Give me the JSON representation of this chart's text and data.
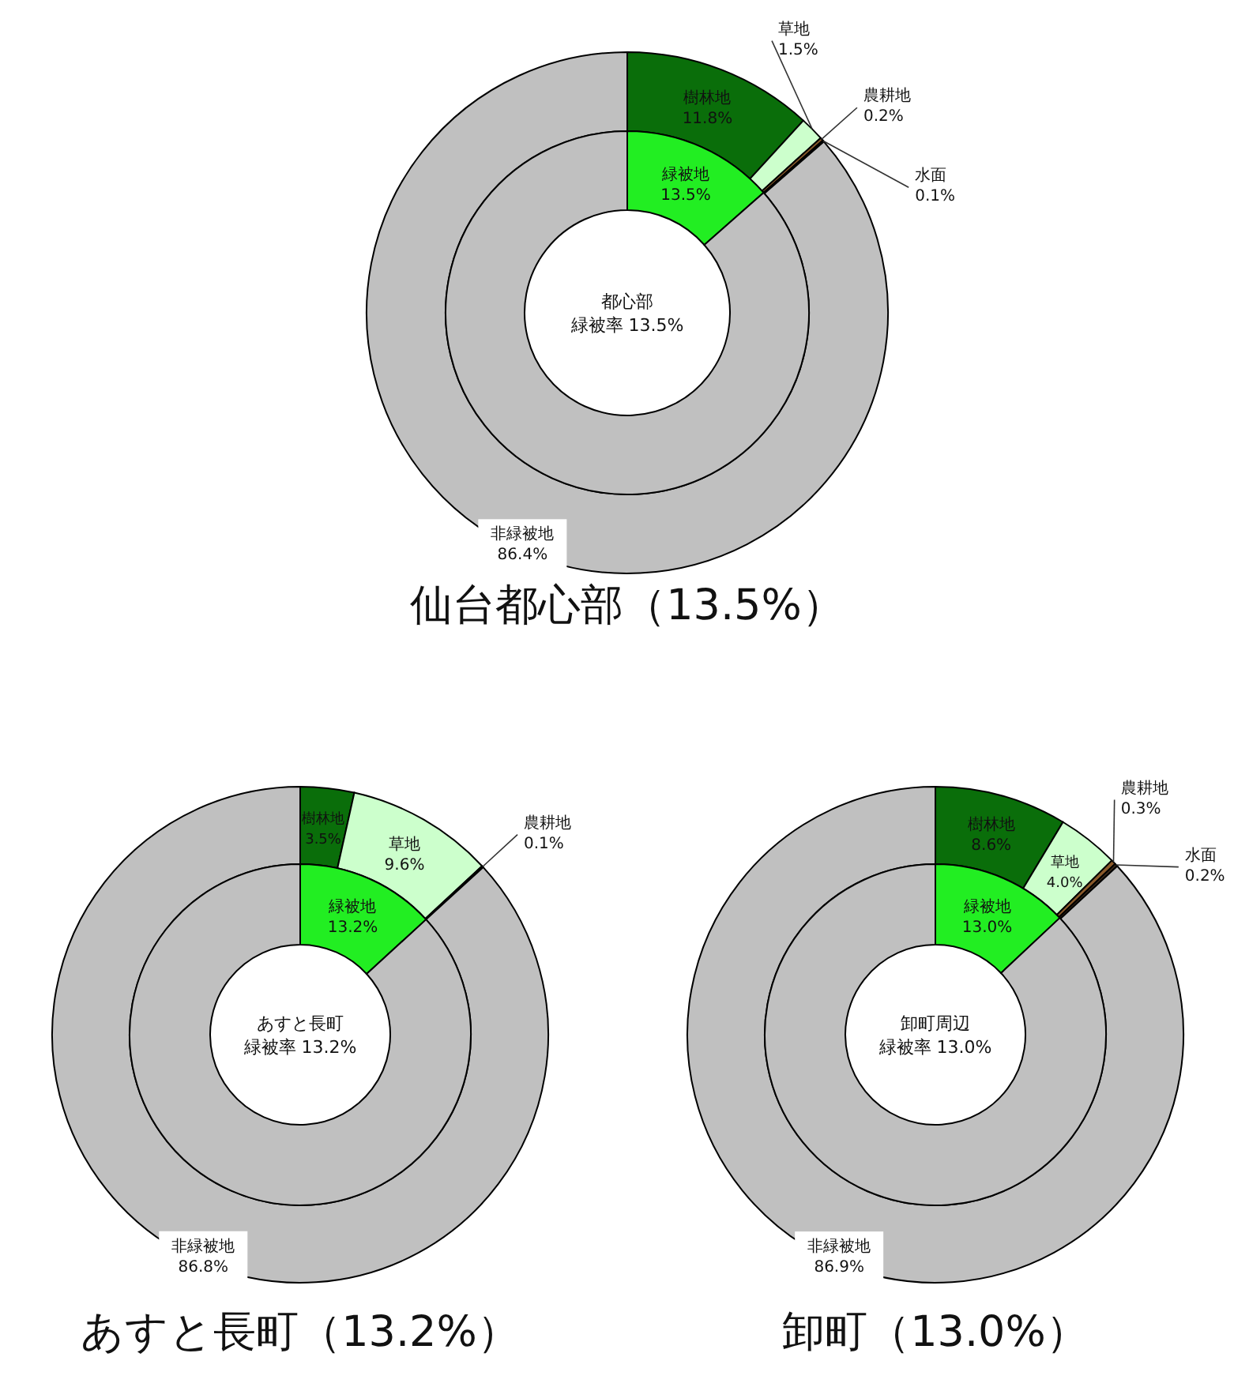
{
  "chart_data": [
    {
      "type": "donut",
      "title": "仙台都心部（13.5%）",
      "categories": [
        "樹林地",
        "草地",
        "農耕地",
        "水面",
        "非緑被地"
      ],
      "colors": [
        "#0a6e0a",
        "#ccffcc",
        "#8b5a2b",
        "#3b2a1a",
        "#c0c0c0"
      ],
      "values": [
        11.8,
        1.5,
        0.2,
        0.1,
        86.4
      ],
      "value_labels": [
        "11.8%",
        "1.5%",
        "0.2%",
        "0.1%",
        "86.4%"
      ]
    },
    {
      "type": "donut",
      "annotations": [
        "都心部",
        "緑被率 13.5%"
      ],
      "categories": [
        "緑被地",
        null
      ],
      "colors": [
        "#22ee22",
        "#c0c0c0"
      ],
      "values": [
        13.5,
        86.5
      ],
      "value_labels": [
        "13.5%",
        null
      ]
    },
    {
      "type": "donut",
      "title": "あすと長町（13.2%）",
      "categories": [
        "樹林地",
        "草地",
        "農耕地",
        "非緑被地"
      ],
      "colors": [
        "#0a6e0a",
        "#ccffcc",
        "#8b5a2b",
        "#c0c0c0"
      ],
      "values": [
        3.5,
        9.6,
        0.1,
        86.8
      ],
      "value_labels": [
        "3.5%",
        "9.6%",
        "0.1%",
        "86.8%"
      ]
    },
    {
      "type": "donut",
      "annotations": [
        "あすと長町",
        "緑被率 13.2%"
      ],
      "categories": [
        "緑被地",
        null
      ],
      "colors": [
        "#22ee22",
        "#c0c0c0"
      ],
      "values": [
        13.2,
        86.8
      ],
      "value_labels": [
        "13.2%",
        null
      ]
    },
    {
      "type": "donut",
      "title": "卸町（13.0%）",
      "categories": [
        "樹林地",
        "草地",
        "農耕地",
        "水面",
        "非緑被地"
      ],
      "colors": [
        "#0a6e0a",
        "#ccffcc",
        "#8b5a2b",
        "#3b2a1a",
        "#c0c0c0"
      ],
      "values": [
        8.6,
        4.0,
        0.3,
        0.2,
        86.9
      ],
      "value_labels": [
        "8.6%",
        "4.0%",
        "0.3%",
        "0.2%",
        "86.9%"
      ]
    },
    {
      "type": "donut",
      "annotations": [
        "卸町周辺",
        "緑被率 13.0%"
      ],
      "categories": [
        "緑被地",
        null
      ],
      "colors": [
        "#22ee22",
        "#c0c0c0"
      ],
      "values": [
        13.0,
        87.0
      ],
      "value_labels": [
        "13.0%",
        null
      ]
    }
  ]
}
